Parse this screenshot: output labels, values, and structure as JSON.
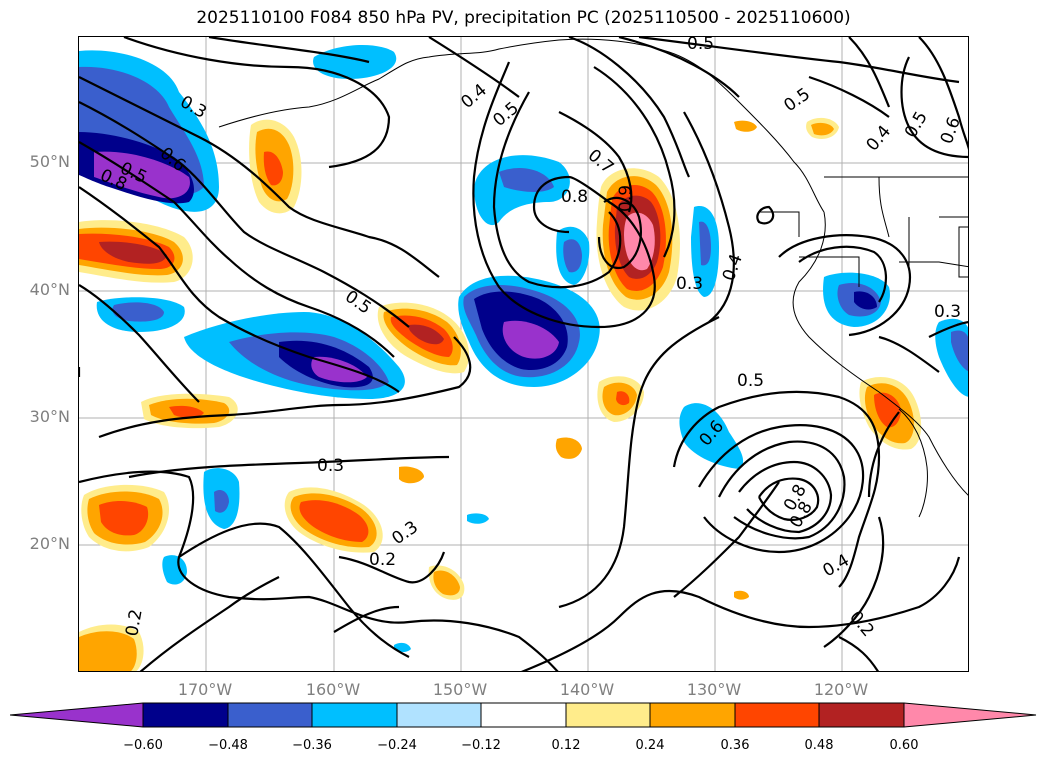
{
  "title": "2025110100 F084 850 hPa PV, precipitation PC (2025110500 - 2025110600)",
  "map": {
    "lat_labels": [
      "50°N",
      "40°N",
      "30°N",
      "20°N"
    ],
    "lon_labels": [
      "170°W",
      "160°W",
      "150°W",
      "140°W",
      "130°W",
      "120°W"
    ],
    "contour_labels": [
      {
        "text": "0.5"
      },
      {
        "text": "0.3"
      },
      {
        "text": "0.4"
      },
      {
        "text": "0.5"
      },
      {
        "text": "0.7"
      },
      {
        "text": "0.8"
      },
      {
        "text": "0.9"
      },
      {
        "text": "0.3"
      },
      {
        "text": "0.4"
      },
      {
        "text": "0.5"
      },
      {
        "text": "0.3"
      },
      {
        "text": "0.5"
      },
      {
        "text": "0.6"
      },
      {
        "text": "0.8"
      },
      {
        "text": "0.4"
      },
      {
        "text": "0.2"
      },
      {
        "text": "0.3"
      },
      {
        "text": "0.2"
      },
      {
        "text": "0.3"
      },
      {
        "text": "0.2"
      },
      {
        "text": "0.5"
      },
      {
        "text": "0.4"
      },
      {
        "text": "0.5"
      },
      {
        "text": "0.6"
      },
      {
        "text": "0.6"
      },
      {
        "text": "0.8"
      },
      {
        "text": "0.8"
      },
      {
        "text": "0.5"
      }
    ]
  },
  "colorbar": {
    "tick_labels": [
      "−0.60",
      "−0.48",
      "−0.36",
      "−0.24",
      "−0.12",
      "0.12",
      "0.24",
      "0.36",
      "0.48",
      "0.60"
    ],
    "colors": [
      "#9932cc",
      "#00008b",
      "#3a5fcd",
      "#00bfff",
      "#b0e2ff",
      "#ffffff",
      "#ffec8b",
      "#ffa500",
      "#ff4500",
      "#b22222",
      "#ff88aa"
    ]
  }
}
